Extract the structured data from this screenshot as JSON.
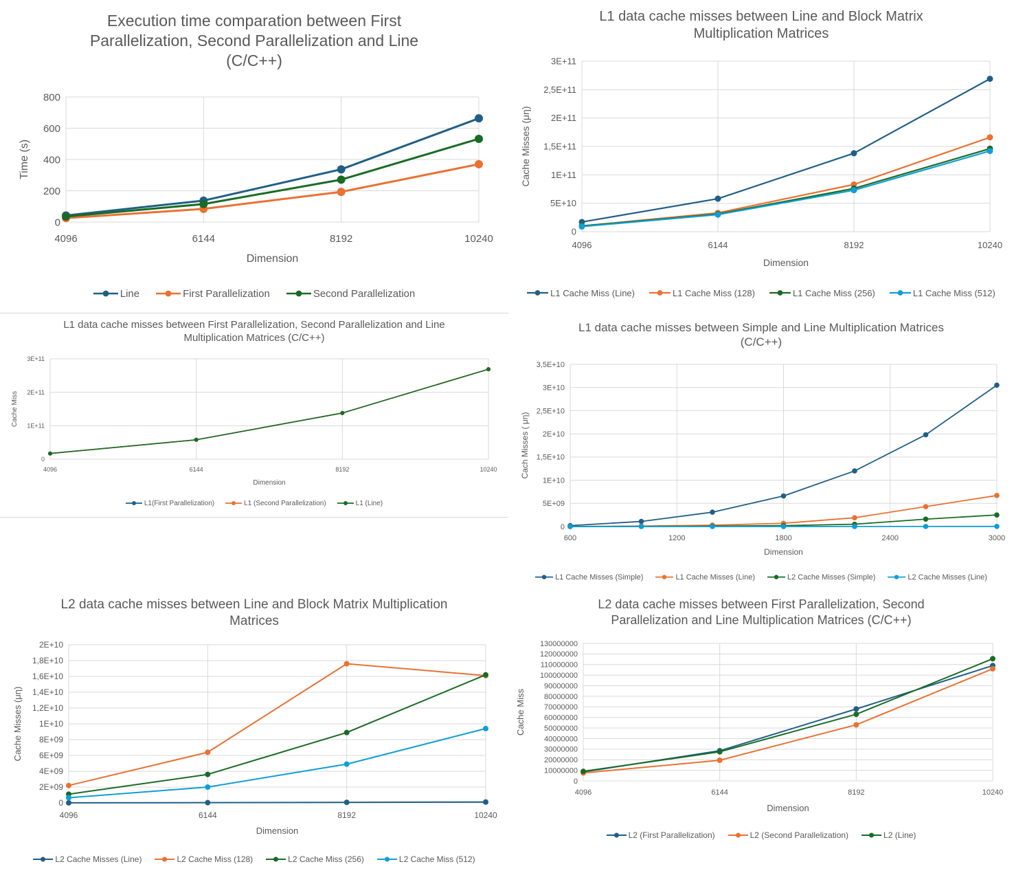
{
  "colors": {
    "blue": "#1f5f86",
    "orange": "#e97132",
    "green": "#196b24",
    "cyan": "#0f9ed5",
    "grid": "#d9d9d9",
    "text": "#595959"
  },
  "chart_data": [
    {
      "type": "line",
      "title": "Execution time comparation between First Parallelization, Second Parallelization and Line (C/C++)",
      "xlabel": "Dimension",
      "ylabel": "Time (s)",
      "x": [
        "4096",
        "6144",
        "8192",
        "10240"
      ],
      "yticks": [
        "0",
        "200",
        "400",
        "600",
        "800"
      ],
      "ylim": [
        0,
        800
      ],
      "grid": true,
      "legend_position": "bottom",
      "series": [
        {
          "name": "Line",
          "color": "blue",
          "values": [
            42,
            137,
            337,
            663
          ]
        },
        {
          "name": "First Parallelization",
          "color": "orange",
          "values": [
            25,
            84,
            193,
            370
          ]
        },
        {
          "name": "Second Parallelization",
          "color": "green",
          "values": [
            35,
            115,
            271,
            532
          ]
        }
      ]
    },
    {
      "type": "line",
      "title": "L1 data cache misses between Line and Block Matrix Multiplication Matrices",
      "xlabel": "Dimension",
      "ylabel": "Cache Misses (μη)",
      "x": [
        "4096",
        "6144",
        "8192",
        "10240"
      ],
      "yticks": [
        "0",
        "5E+10",
        "1E+11",
        "1,5E+11",
        "2E+11",
        "2,5E+11",
        "3E+11"
      ],
      "ylim": [
        0,
        300000000000.0
      ],
      "grid": true,
      "legend_position": "bottom",
      "series": [
        {
          "name": "L1 Cache Miss (Line)",
          "color": "blue",
          "values": [
            17000000000.0,
            58000000000.0,
            138000000000.0,
            269000000000.0
          ]
        },
        {
          "name": "L1 Cache Miss (128)",
          "color": "orange",
          "values": [
            10000000000.0,
            33000000000.0,
            83000000000.0,
            166000000000.0
          ]
        },
        {
          "name": "L1 Cache Miss (256)",
          "color": "green",
          "values": [
            10000000000.0,
            31000000000.0,
            76000000000.0,
            146000000000.0
          ]
        },
        {
          "name": "L1 Cache Miss (512)",
          "color": "cyan",
          "values": [
            9000000000.0,
            30000000000.0,
            73000000000.0,
            142000000000.0
          ]
        }
      ]
    },
    {
      "type": "line",
      "title": "L1 data cache misses between First Parallelization, Second Parallelization and Line Multiplication Matrices (C/C++)",
      "xlabel": "Dimension",
      "ylabel": "Cache Miss",
      "x": [
        "4096",
        "6144",
        "8192",
        "10240"
      ],
      "yticks": [
        "0",
        "1E+11",
        "2E+11",
        "3E+11"
      ],
      "ylim": [
        0,
        300000000000.0
      ],
      "grid": true,
      "legend_position": "bottom",
      "series": [
        {
          "name": "L1(First Parallelization)",
          "color": "blue",
          "values": [
            17000000000.0,
            58000000000.0,
            138000000000.0,
            269000000000.0
          ]
        },
        {
          "name": "L1 (Second Parallelization)",
          "color": "orange",
          "values": [
            17000000000.0,
            58000000000.0,
            138000000000.0,
            269000000000.0
          ]
        },
        {
          "name": "L1 (Line)",
          "color": "green",
          "values": [
            17000000000.0,
            58000000000.0,
            138000000000.0,
            269000000000.0
          ]
        }
      ]
    },
    {
      "type": "line",
      "title": "L1 data cache misses between Simple and Line Multiplication Matrices (C/C++)",
      "xlabel": "Dimension",
      "ylabel": "Cach Misses ( μη)",
      "x": [
        600,
        1000,
        1400,
        1800,
        2200,
        2600,
        3000
      ],
      "xticks": [
        "600",
        "1200",
        "1800",
        "2400",
        "3000"
      ],
      "xlim": [
        600,
        3000
      ],
      "yticks": [
        "0",
        "5E+09",
        "1E+10",
        "1,5E+10",
        "2E+10",
        "2,5E+10",
        "3E+10",
        "3,5E+10"
      ],
      "ylim": [
        0,
        35000000000.0
      ],
      "grid": true,
      "legend_position": "bottom",
      "series": [
        {
          "name": "L1 Cache Misses (Simple)",
          "color": "blue",
          "values": [
            200000000.0,
            1100000000.0,
            3100000000.0,
            6600000000.0,
            12000000000.0,
            19800000000.0,
            30500000000.0
          ]
        },
        {
          "name": "L1 Cache Misses (Line)",
          "color": "orange",
          "values": [
            10000000.0,
            100000000.0,
            300000000.0,
            700000000.0,
            1900000000.0,
            4300000000.0,
            6700000000.0
          ]
        },
        {
          "name": "L2 Cache Misses (Simple)",
          "color": "green",
          "values": [
            10000000.0,
            30000000.0,
            80000000.0,
            200000000.0,
            500000000.0,
            1600000000.0,
            2500000000.0
          ]
        },
        {
          "name": "L2 Cache Misses (Line)",
          "color": "cyan",
          "values": [
            1000000.0,
            3000000.0,
            5000000.0,
            10000000.0,
            15000000.0,
            20000000.0,
            30000000.0
          ]
        }
      ]
    },
    {
      "type": "line",
      "title": "L2 data cache misses between Line and Block Matrix Multiplication Matrices",
      "xlabel": "Dimension",
      "ylabel": "Cache Misses (μη)",
      "x": [
        "4096",
        "6144",
        "8192",
        "10240"
      ],
      "yticks": [
        "0",
        "2E+09",
        "4E+09",
        "6E+09",
        "8E+09",
        "1E+10",
        "1,2E+10",
        "1,4E+10",
        "1,6E+10",
        "1,8E+10",
        "2E+10"
      ],
      "ylim": [
        0,
        20000000000.0
      ],
      "grid": true,
      "legend_position": "bottom",
      "series": [
        {
          "name": "L2 Cache Misses (Line)",
          "color": "blue",
          "values": [
            9000000.0,
            29000000.0,
            68000000.0,
            110000000.0
          ]
        },
        {
          "name": "L2 Cache Miss (128)",
          "color": "orange",
          "values": [
            2200000000.0,
            6400000000.0,
            17600000000.0,
            16100000000.0
          ]
        },
        {
          "name": "L2 Cache Miss (256)",
          "color": "green",
          "values": [
            1100000000.0,
            3600000000.0,
            8900000000.0,
            16200000000.0
          ]
        },
        {
          "name": "L2 Cache Miss (512)",
          "color": "cyan",
          "values": [
            650000000.0,
            2000000000.0,
            4900000000.0,
            9400000000.0
          ]
        }
      ]
    },
    {
      "type": "line",
      "title": "L2 data cache misses between First Parallelization, Second Parallelization and Line Multiplication Matrices (C/C++)",
      "xlabel": "Dimension",
      "ylabel": "Cache Miss",
      "x": [
        "4096",
        "6144",
        "8192",
        "10240"
      ],
      "yticks": [
        "0",
        "10000000",
        "20000000",
        "30000000",
        "40000000",
        "50000000",
        "60000000",
        "70000000",
        "80000000",
        "90000000",
        "100000000",
        "110000000",
        "120000000",
        "130000000"
      ],
      "ylim": [
        0,
        130000000
      ],
      "grid": true,
      "legend_position": "bottom",
      "series": [
        {
          "name": "L2 (First Parallelization)",
          "color": "blue",
          "values": [
            8500000,
            28500000,
            68000000,
            109000000
          ]
        },
        {
          "name": "L2 (Second Parallelization)",
          "color": "orange",
          "values": [
            7500000,
            19500000,
            53000000,
            106000000
          ]
        },
        {
          "name": "L2 (Line)",
          "color": "green",
          "values": [
            9000000,
            27500000,
            63000000,
            115500000
          ]
        }
      ]
    }
  ]
}
